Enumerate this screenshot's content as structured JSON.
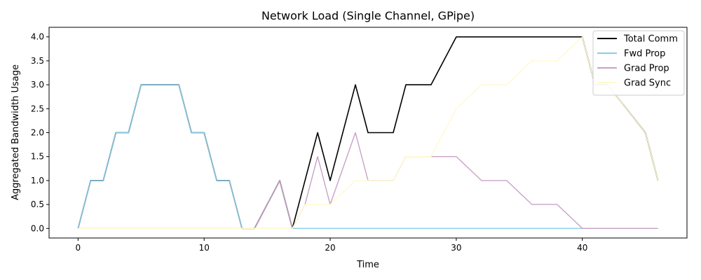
{
  "chart_data": {
    "type": "line",
    "title": "Network Load (Single Channel, GPipe)",
    "xlabel": "Time",
    "ylabel": "Aggregated Bandwidth Usage",
    "xlim": [
      -2.3,
      48.3
    ],
    "ylim": [
      -0.2,
      4.2
    ],
    "xticks": [
      0,
      10,
      20,
      30,
      40
    ],
    "yticks": [
      0.0,
      0.5,
      1.0,
      1.5,
      2.0,
      2.5,
      3.0,
      3.5,
      4.0
    ],
    "xtick_labels": [
      "0",
      "10",
      "20",
      "30",
      "40"
    ],
    "ytick_labels": [
      "0.0",
      "0.5",
      "1.0",
      "1.5",
      "2.0",
      "2.5",
      "3.0",
      "3.5",
      "4.0"
    ],
    "grid": false,
    "legend_position": "top-right",
    "series": [
      {
        "name": "Total Comm",
        "color": "#000000",
        "points": [
          [
            0,
            0
          ],
          [
            1,
            1
          ],
          [
            2,
            1
          ],
          [
            3,
            2
          ],
          [
            4,
            2
          ],
          [
            5,
            3
          ],
          [
            8,
            3
          ],
          [
            9,
            2
          ],
          [
            10,
            2
          ],
          [
            11,
            1
          ],
          [
            12,
            1
          ],
          [
            13,
            0
          ],
          [
            14,
            0
          ],
          [
            16,
            1
          ],
          [
            17,
            0
          ],
          [
            19,
            2
          ],
          [
            20,
            1
          ],
          [
            22,
            3
          ],
          [
            23,
            2
          ],
          [
            25,
            2
          ],
          [
            26,
            3
          ],
          [
            28,
            3
          ],
          [
            30,
            4
          ],
          [
            40,
            4
          ],
          [
            41,
            3
          ],
          [
            42,
            3
          ],
          [
            45,
            2
          ],
          [
            46,
            1
          ]
        ]
      },
      {
        "name": "Fwd Prop",
        "color": "#87ceeb",
        "points": [
          [
            0,
            0
          ],
          [
            1,
            1
          ],
          [
            2,
            1
          ],
          [
            3,
            2
          ],
          [
            4,
            2
          ],
          [
            5,
            3
          ],
          [
            8,
            3
          ],
          [
            9,
            2
          ],
          [
            10,
            2
          ],
          [
            11,
            1
          ],
          [
            12,
            1
          ],
          [
            13,
            0
          ],
          [
            46,
            0
          ]
        ]
      },
      {
        "name": "Grad Prop",
        "color": "#c8a2c8",
        "points": [
          [
            0,
            0
          ],
          [
            14,
            0
          ],
          [
            16,
            1
          ],
          [
            17,
            0
          ],
          [
            18,
            0.5
          ],
          [
            19,
            1.5
          ],
          [
            20,
            0.5
          ],
          [
            22,
            2
          ],
          [
            23,
            1
          ],
          [
            25,
            1
          ],
          [
            26,
            1.5
          ],
          [
            30,
            1.5
          ],
          [
            32,
            1
          ],
          [
            34,
            1
          ],
          [
            36,
            0.5
          ],
          [
            38,
            0.5
          ],
          [
            40,
            0
          ],
          [
            46,
            0
          ]
        ]
      },
      {
        "name": "Grad Sync",
        "color": "#fffacd",
        "points": [
          [
            0,
            0
          ],
          [
            17,
            0
          ],
          [
            18,
            0.5
          ],
          [
            20,
            0.5
          ],
          [
            22,
            1
          ],
          [
            25,
            1
          ],
          [
            26,
            1.5
          ],
          [
            28,
            1.5
          ],
          [
            30,
            2.5
          ],
          [
            32,
            3
          ],
          [
            34,
            3
          ],
          [
            36,
            3.5
          ],
          [
            38,
            3.5
          ],
          [
            40,
            4
          ],
          [
            41,
            3
          ],
          [
            42,
            3
          ],
          [
            45,
            2
          ],
          [
            46,
            1
          ]
        ]
      }
    ]
  }
}
